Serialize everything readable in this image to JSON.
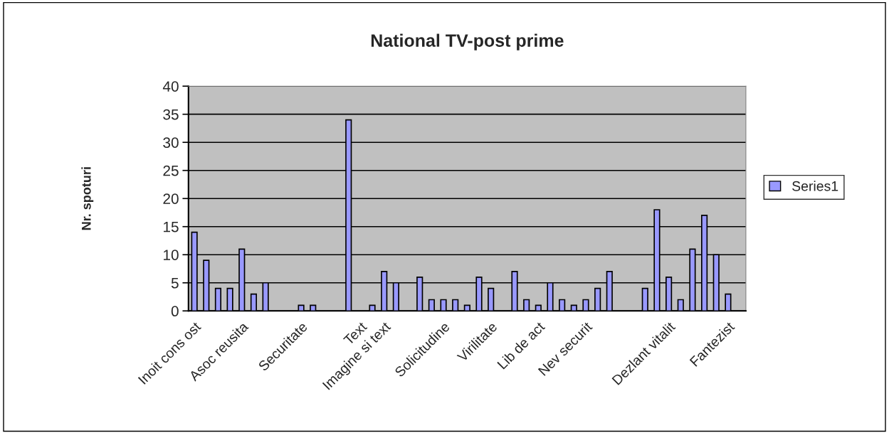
{
  "chart_data": {
    "type": "bar",
    "title": "National TV-post prime",
    "ylabel": "Nr. spoturi",
    "categories": [
      "Inoit cons ost",
      null,
      null,
      null,
      "Asoc reusita",
      null,
      null,
      null,
      null,
      "Securitate",
      null,
      null,
      null,
      null,
      "Text",
      null,
      "Imagine si text",
      null,
      null,
      null,
      null,
      "Solicitudine",
      null,
      null,
      null,
      "Virilitate",
      null,
      null,
      null,
      "Lib de act",
      null,
      null,
      null,
      "Nev securit",
      null,
      null,
      null,
      null,
      null,
      null,
      "Dezlant vitalit",
      null,
      null,
      null,
      null,
      "Fantezist",
      null
    ],
    "series": [
      {
        "name": "Series1",
        "color": "#9999ff",
        "values": [
          14,
          9,
          4,
          4,
          11,
          3,
          5,
          null,
          null,
          1,
          1,
          null,
          null,
          34,
          null,
          1,
          7,
          5,
          null,
          6,
          2,
          2,
          2,
          1,
          6,
          4,
          null,
          7,
          2,
          1,
          5,
          2,
          1,
          2,
          4,
          7,
          null,
          null,
          4,
          18,
          6,
          2,
          11,
          17,
          10,
          3,
          null
        ]
      }
    ],
    "ylim": [
      0,
      40
    ],
    "yticks": [
      0,
      5,
      10,
      15,
      20,
      25,
      30,
      35,
      40
    ],
    "grid": "y",
    "legend": "right"
  }
}
